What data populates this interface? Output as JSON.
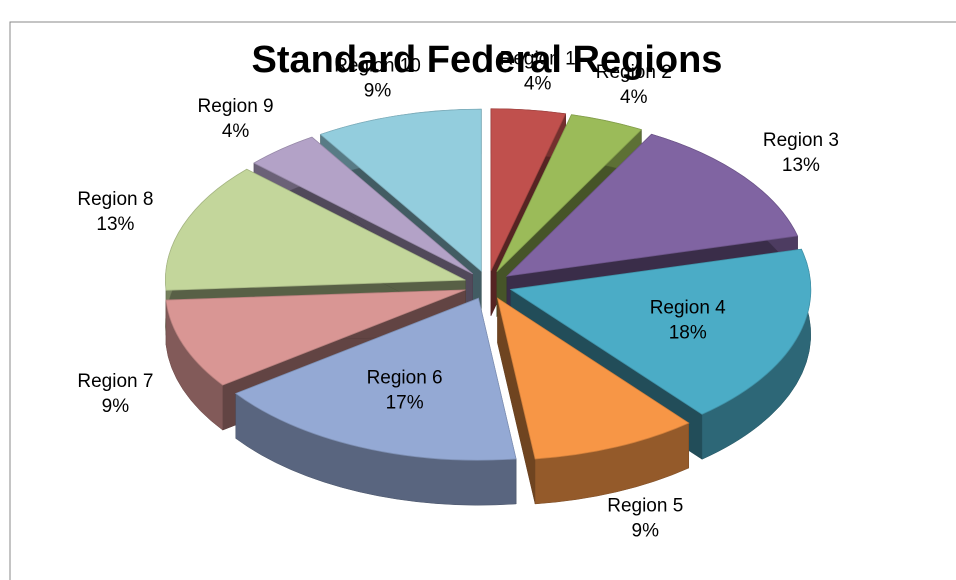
{
  "chart_data": {
    "type": "pie3d",
    "title": "Standard Federal Regions",
    "categories": [
      "Region 1",
      "Region 2",
      "Region 3",
      "Region 4",
      "Region 5",
      "Region 6",
      "Region 7",
      "Region 8",
      "Region 9",
      "Region 10"
    ],
    "values": [
      4,
      4,
      13,
      18,
      9,
      17,
      9,
      13,
      4,
      9
    ],
    "value_labels": [
      "4%",
      "4%",
      "13%",
      "18%",
      "9%",
      "17%",
      "9%",
      "13%",
      "4%",
      "9%"
    ],
    "colors": [
      "#c0504d",
      "#9bbb59",
      "#8064a2",
      "#4bacc6",
      "#f79646",
      "#94a9d4",
      "#d99694",
      "#c3d69b",
      "#b3a2c7",
      "#93cddd"
    ],
    "exploded": true
  }
}
